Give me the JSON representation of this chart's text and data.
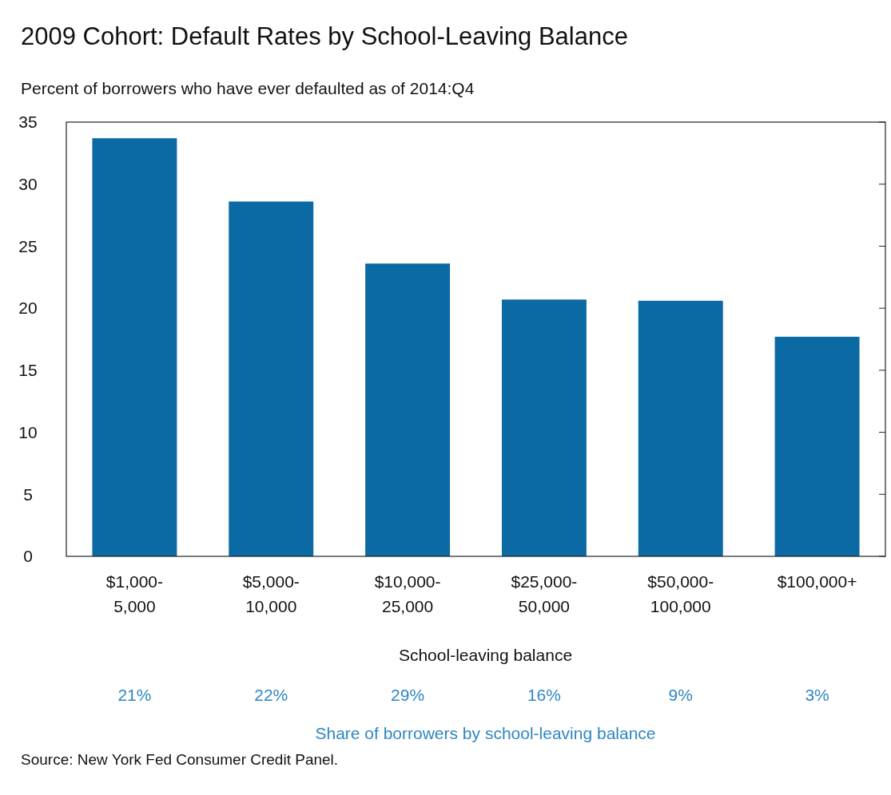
{
  "chart_data": {
    "type": "bar",
    "title": "2009 Cohort: Default Rates by School-Leaving Balance",
    "subtitle": "Percent of borrowers who have ever defaulted as of 2014:Q4",
    "xlabel": "School-leaving  balance",
    "categories": [
      "$1,000-5,000",
      "$5,000-10,000",
      "$10,000-25,000",
      "$25,000-50,000",
      "$50,000-100,000",
      "$100,000+"
    ],
    "values": [
      33.7,
      28.6,
      23.6,
      20.7,
      20.6,
      17.7
    ],
    "color": "#0b69a3",
    "ylim": [
      0,
      35
    ],
    "yticks": [
      0,
      5,
      10,
      15,
      20,
      25,
      30,
      35
    ],
    "grid": false,
    "annotations": [
      "21%",
      "22%",
      "29%",
      "16%",
      "9%",
      "3%",
      "Share of borrowers by school-leaving balance",
      "Source: New York Fed Consumer Credit Panel."
    ]
  }
}
